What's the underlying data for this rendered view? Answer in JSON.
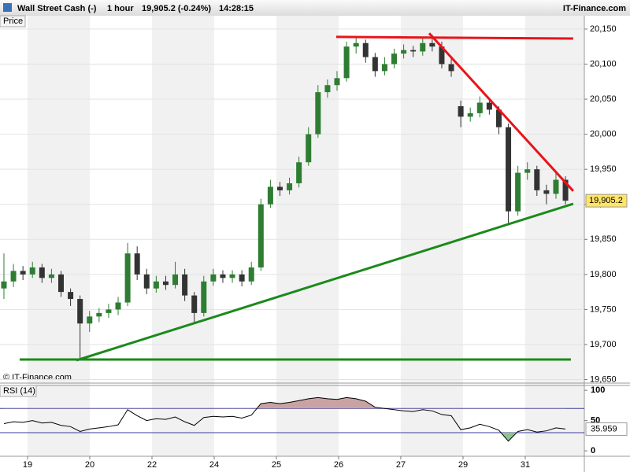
{
  "header": {
    "symbol": "Wall Street Cash (-)",
    "interval": "1 hour",
    "quote": "19,905.2 (-0.24%)",
    "time": "14:28:15",
    "brand": "IT-Finance.com"
  },
  "chart_data": {
    "type": "candlestick",
    "panel_label": "Price",
    "watermark": "© IT-Finance.com",
    "up_color": "#2e7d32",
    "down_color": "#333333",
    "grid": true,
    "x": [
      -0.38,
      -0.227,
      -0.074,
      0.079,
      0.232,
      0.385,
      0.538,
      0.691,
      0.844,
      0.997,
      1.15,
      1.303,
      1.456,
      1.609,
      1.762,
      1.915,
      2.068,
      2.221,
      2.374,
      2.527,
      2.68,
      2.833,
      2.986,
      3.139,
      3.292,
      3.445,
      3.598,
      3.751,
      3.904,
      4.057,
      4.21,
      4.363,
      4.516,
      4.669,
      4.822,
      4.975,
      5.128,
      5.281,
      5.434,
      5.587,
      5.74,
      5.893,
      6.046,
      6.199,
      6.352,
      6.505,
      6.658,
      6.811,
      6.964,
      7.117,
      7.27,
      7.423,
      7.576,
      7.729,
      7.882,
      8.035,
      8.188,
      8.341,
      8.494,
      8.647
    ],
    "open": [
      19780,
      19790,
      19805,
      19800,
      19810,
      19795,
      19800,
      19775,
      19765,
      19730,
      19740,
      19745,
      19750,
      19760,
      19830,
      19800,
      19780,
      19790,
      19785,
      19800,
      19770,
      19745,
      19790,
      19800,
      19795,
      19800,
      19790,
      19810,
      19900,
      19925,
      19920,
      19930,
      19960,
      20000,
      20060,
      20070,
      20080,
      20125,
      20130,
      20110,
      20090,
      20100,
      20115,
      20120,
      20118,
      20130,
      20125,
      20100,
      20040,
      20025,
      20030,
      20045,
      20035,
      20010,
      19890,
      19945,
      19950,
      19920,
      19915,
      19935
    ],
    "high": [
      19830,
      19815,
      19812,
      19818,
      19815,
      19808,
      19805,
      19780,
      19770,
      19748,
      19752,
      19758,
      19768,
      19845,
      19840,
      19808,
      19798,
      19798,
      19818,
      19808,
      19775,
      19798,
      19808,
      19806,
      19806,
      19806,
      19818,
      19908,
      19935,
      19932,
      19938,
      19968,
      20010,
      20070,
      20078,
      20090,
      20132,
      20138,
      20135,
      20116,
      20110,
      20122,
      20128,
      20126,
      20138,
      20142,
      20132,
      20108,
      20048,
      20038,
      20054,
      20052,
      20040,
      20015,
      19955,
      19960,
      19955,
      19928,
      19945,
      19940
    ],
    "low": [
      19765,
      19782,
      19792,
      19795,
      19788,
      19788,
      19768,
      19755,
      19680,
      19718,
      19732,
      19738,
      19742,
      19755,
      19792,
      19772,
      19774,
      19778,
      19780,
      19762,
      19730,
      19740,
      19784,
      19788,
      19788,
      19783,
      19785,
      19805,
      19895,
      19912,
      19914,
      19924,
      19955,
      19995,
      20052,
      20062,
      20075,
      20115,
      20102,
      20082,
      20084,
      20094,
      20108,
      20110,
      20112,
      20118,
      20094,
      20082,
      20010,
      20018,
      20024,
      20028,
      20000,
      19870,
      19884,
      19935,
      19912,
      19900,
      19908,
      19900
    ],
    "close": [
      19790,
      19805,
      19800,
      19810,
      19795,
      19800,
      19775,
      19765,
      19730,
      19740,
      19745,
      19750,
      19760,
      19830,
      19800,
      19780,
      19790,
      19785,
      19800,
      19770,
      19745,
      19790,
      19800,
      19795,
      19800,
      19790,
      19810,
      19900,
      19925,
      19920,
      19930,
      19960,
      20000,
      20060,
      20070,
      20080,
      20125,
      20130,
      20110,
      20090,
      20100,
      20115,
      20120,
      20118,
      20130,
      20125,
      20100,
      20090,
      20025,
      20030,
      20045,
      20035,
      20010,
      19890,
      19945,
      19950,
      19920,
      19915,
      19935,
      19905.2
    ],
    "xlim": [
      -0.443,
      8.95
    ],
    "ylim": [
      19645,
      20169
    ],
    "yticks": [
      {
        "value": 19650,
        "label": "19,650"
      },
      {
        "value": 19700,
        "label": "19,700"
      },
      {
        "value": 19750,
        "label": "19,750"
      },
      {
        "value": 19800,
        "label": "19,800"
      },
      {
        "value": 19850,
        "label": "19,850"
      },
      {
        "value": 19900,
        "label": "19,900"
      },
      {
        "value": 19950,
        "label": "19,950"
      },
      {
        "value": 20000,
        "label": "20,000"
      },
      {
        "value": 20050,
        "label": "20,050"
      },
      {
        "value": 20100,
        "label": "20,100"
      },
      {
        "value": 20150,
        "label": "20,150"
      }
    ],
    "xticks": [
      {
        "value": 0,
        "label": "19"
      },
      {
        "value": 1,
        "label": "20"
      },
      {
        "value": 2,
        "label": "22"
      },
      {
        "value": 3,
        "label": "24"
      },
      {
        "value": 4,
        "label": "25"
      },
      {
        "value": 5,
        "label": "26"
      },
      {
        "value": 6,
        "label": "27"
      },
      {
        "value": 7,
        "label": "29"
      },
      {
        "value": 8,
        "label": "31"
      }
    ],
    "last_price": {
      "value": 19905.2,
      "label": "19,905.2"
    },
    "trendlines": [
      {
        "color": "#e8141b",
        "x": [
          4.962,
          8.772
        ],
        "y": [
          20138.8,
          20136.5
        ]
      },
      {
        "color": "#e8141b",
        "x": [
          6.456,
          8.772
        ],
        "y": [
          20144,
          19919
        ]
      },
      {
        "color": "#1b8a1b",
        "x": [
          0.785,
          8.772
        ],
        "y": [
          19677.5,
          19900.8
        ]
      },
      {
        "color": "#1b8a1b",
        "x": [
          -0.127,
          8.734
        ],
        "y": [
          19678.6,
          19678.6
        ]
      }
    ],
    "rsi": {
      "title": "RSI (14)",
      "color": "#000000",
      "values": [
        45,
        48,
        47,
        50,
        46,
        47,
        42,
        40,
        32,
        36,
        38,
        40,
        43,
        68,
        58,
        50,
        53,
        52,
        56,
        48,
        42,
        55,
        57,
        56,
        57,
        54,
        59,
        78,
        80,
        78,
        80,
        83,
        86,
        88,
        86,
        85,
        88,
        86,
        82,
        72,
        70,
        68,
        66,
        65,
        68,
        66,
        60,
        58,
        35,
        38,
        44,
        40,
        34,
        16,
        32,
        35,
        31,
        33,
        38,
        35.959
      ],
      "ylim": [
        -9,
        108
      ],
      "yticks": [
        0,
        50,
        100
      ],
      "levels": [
        30,
        70
      ],
      "last": 35.959
    }
  }
}
